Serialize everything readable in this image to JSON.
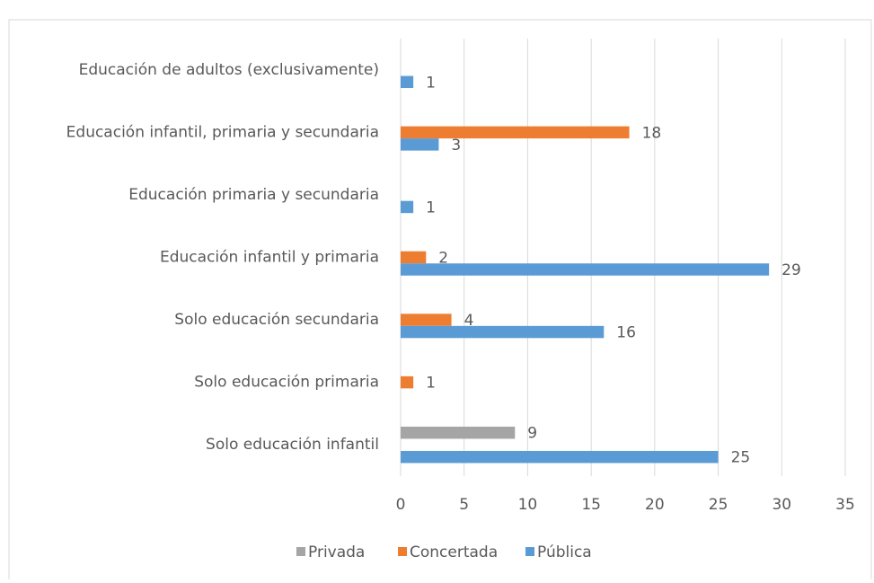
{
  "chart_data": {
    "type": "hbar",
    "categories": [
      "Solo educación infantil",
      "Solo educación primaria",
      "Solo educación secundaria",
      "Educación infantil y primaria",
      "Educación primaria y secundaria",
      "Educación infantil, primaria y secundaria",
      "Educación de adultos (exclusivamente)"
    ],
    "series": [
      {
        "name": "Privada",
        "color": "#a5a5a5",
        "values": [
          9,
          null,
          null,
          null,
          null,
          null,
          null
        ]
      },
      {
        "name": "Concertada",
        "color": "#ed7d31",
        "values": [
          null,
          1,
          4,
          2,
          null,
          18,
          null
        ]
      },
      {
        "name": "Pública",
        "color": "#5b9bd5",
        "values": [
          25,
          null,
          16,
          29,
          1,
          3,
          1
        ]
      }
    ],
    "xlim": [
      0,
      35
    ],
    "xticks": [
      0,
      5,
      10,
      15,
      20,
      25,
      30,
      35
    ],
    "grid": true,
    "legend": "bottom"
  }
}
